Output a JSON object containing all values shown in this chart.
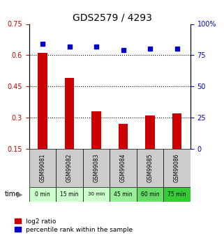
{
  "title": "GDS2579 / 4293",
  "samples": [
    "GSM99081",
    "GSM99082",
    "GSM99083",
    "GSM99084",
    "GSM99085",
    "GSM99086"
  ],
  "time_labels": [
    "0 min",
    "15 min",
    "30 min",
    "45 min",
    "60 min",
    "75 min"
  ],
  "time_colors": [
    "#ccffcc",
    "#ccffcc",
    "#ccffcc",
    "#99ee99",
    "#66dd66",
    "#33cc33"
  ],
  "log2_ratio": [
    0.61,
    0.49,
    0.33,
    0.27,
    0.31,
    0.32
  ],
  "percentile_rank": [
    84,
    82,
    82,
    79,
    80,
    80
  ],
  "bar_color": "#cc0000",
  "dot_color": "#0000cc",
  "ylim_left": [
    0.15,
    0.75
  ],
  "ylim_right": [
    0,
    100
  ],
  "yticks_left": [
    0.15,
    0.3,
    0.45,
    0.6,
    0.75
  ],
  "yticks_right": [
    0,
    25,
    50,
    75,
    100
  ],
  "ytick_labels_left": [
    "0.15",
    "0.3",
    "0.45",
    "0.6",
    "0.75"
  ],
  "ytick_labels_right": [
    "0",
    "25",
    "50",
    "75",
    "100%"
  ],
  "hlines": [
    0.3,
    0.45,
    0.6
  ],
  "background_color": "#ffffff",
  "plot_bg_color": "#ffffff",
  "legend_red_label": "log2 ratio",
  "legend_blue_label": "percentile rank within the sample",
  "time_arrow_label": "time"
}
